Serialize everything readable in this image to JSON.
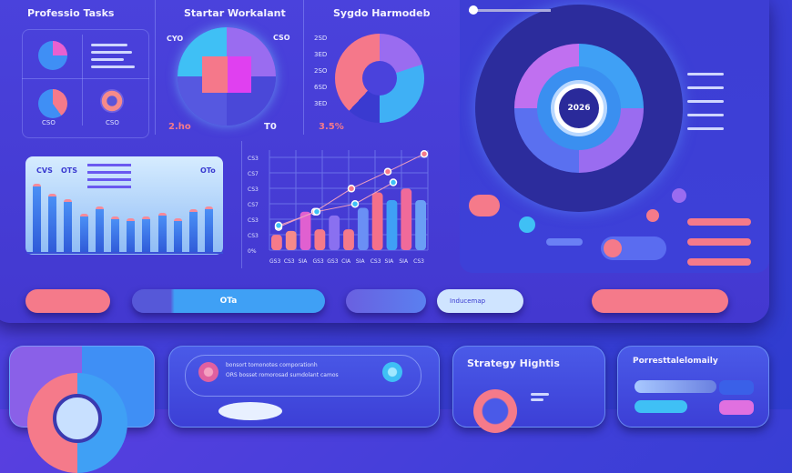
{
  "panels": {
    "tasks": {
      "title": "Professio Tasks",
      "labels": [
        "CSO",
        "CSO"
      ]
    },
    "workplant": {
      "title": "Startar Workalant",
      "label_tl": "CYO",
      "label_tr": "CSO",
      "label_bl": "2.ho",
      "label_br": "T0"
    },
    "harmodel": {
      "title": "Sygdo Harmodeb",
      "ticks": [
        "2SD",
        "3ED",
        "2SO",
        "6SD",
        "3ED"
      ],
      "value": "3.5%"
    },
    "bars": {
      "header": [
        "CVS",
        "OTS",
        "OTo"
      ],
      "values": [
        100,
        85,
        78,
        57,
        67,
        52,
        50,
        52,
        58,
        50,
        63,
        67
      ]
    },
    "linechart": {
      "yticks": [
        "CS3",
        "CS7",
        "CS3",
        "CS7",
        "CS3",
        "CS3",
        "0%"
      ],
      "xticks": [
        "GS3",
        "CS3",
        "SIA",
        "GS3",
        "GS3",
        "CIA",
        "SIA",
        "CS3",
        "SIA",
        "SIA",
        "CS3"
      ],
      "bars": [
        20,
        25,
        50,
        27,
        45,
        27,
        55,
        75,
        65,
        80,
        65
      ],
      "line1": [
        30,
        50,
        80,
        102,
        125
      ],
      "line2": [
        32,
        50,
        60,
        88
      ]
    },
    "dial": {
      "center": "2026"
    }
  },
  "buttons": {
    "b2_text": "OTa",
    "b1": "",
    "b3": "",
    "b4": "Inducemap",
    "b5": ""
  },
  "bottom": {
    "info": {
      "line1": "bonsort tomonotes comporationh",
      "line2": "ORS bosset romorosad sumdolant camos"
    },
    "strategy": {
      "title": "Strategy Hightis"
    },
    "personal": {
      "title": "Porresttalelomaily"
    }
  },
  "colors": {
    "salmon": "#f57a8a",
    "blue": "#3fa0f5",
    "magenta": "#e040f0",
    "violet": "#9a6cf0",
    "navy": "#2a2a9a"
  }
}
